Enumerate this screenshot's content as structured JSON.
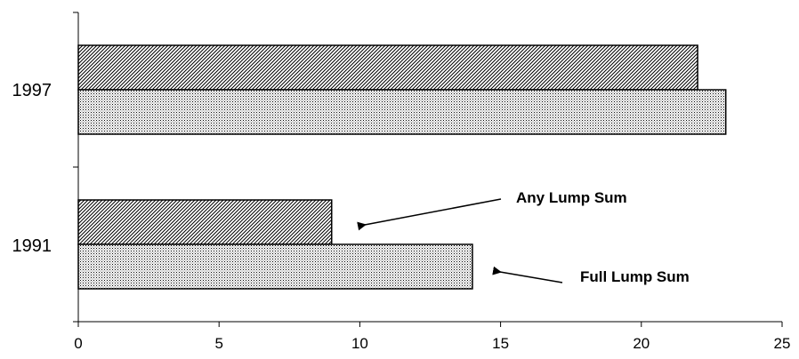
{
  "chart_data": {
    "type": "bar",
    "orientation": "horizontal",
    "categories": [
      "1991",
      "1997"
    ],
    "series": [
      {
        "name": "Any Lump Sum",
        "values": [
          9,
          22
        ],
        "pattern": "diagonal-hatch"
      },
      {
        "name": "Full Lump Sum",
        "values": [
          14,
          23
        ],
        "pattern": "dots"
      }
    ],
    "xlim": [
      0,
      25
    ],
    "xticks": [
      "0",
      "5",
      "10",
      "15",
      "20",
      "25"
    ],
    "title": "",
    "xlabel": "",
    "ylabel": "",
    "grid": false,
    "legend": "arrow-annotations",
    "annotations": [
      {
        "text": "Any Lump Sum",
        "points_to_series": 0,
        "category": "1991"
      },
      {
        "text": "Full Lump Sum",
        "points_to_series": 1,
        "category": "1991"
      }
    ],
    "colors": {
      "bar_outline": "#000000",
      "pattern_ink": "#000000",
      "background": "#ffffff"
    }
  }
}
